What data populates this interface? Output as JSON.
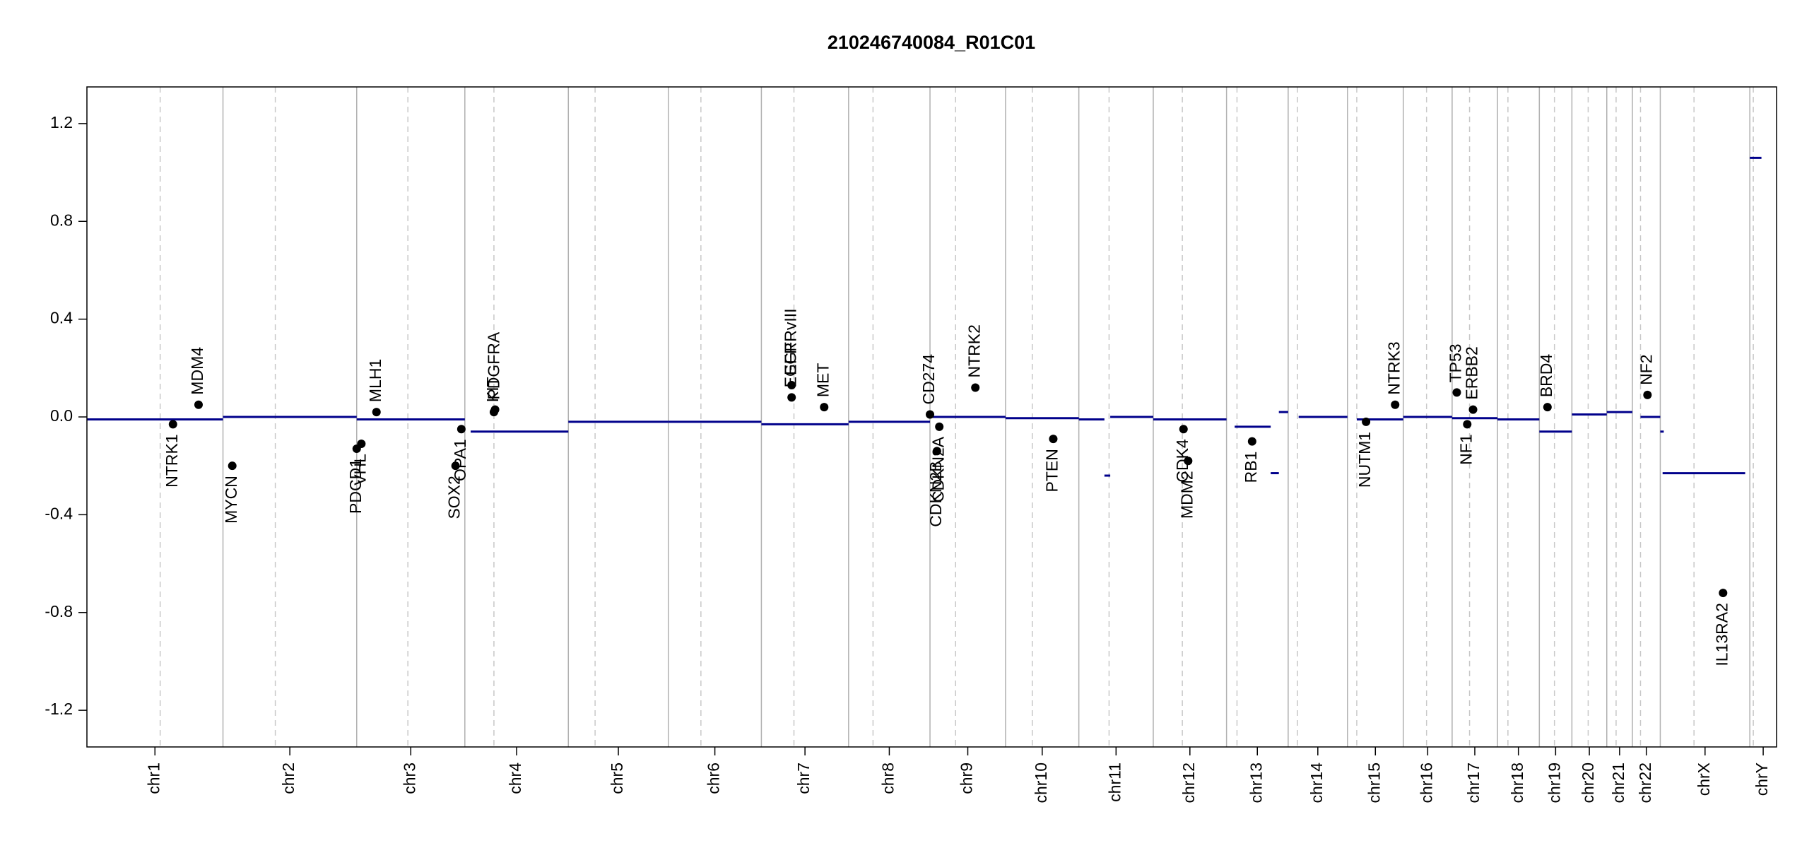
{
  "chart_data": {
    "type": "cnv",
    "title": "210246740084_R01C01",
    "xlim": [
      0,
      1453
    ],
    "ylim": [
      -1.35,
      1.35
    ],
    "yticks": [
      -1.2,
      -0.8,
      -0.4,
      {
        "value": 0,
        "label": "0.0"
      },
      0.4,
      0.8,
      1.2
    ],
    "segment_color": "#00008b",
    "gene_color": "#000000",
    "chromosomes": [
      {
        "name": "chr1",
        "start": 0,
        "end": 117,
        "centromere": 63
      },
      {
        "name": "chr2",
        "start": 117,
        "end": 232,
        "centromere": 162
      },
      {
        "name": "chr3",
        "start": 232,
        "end": 325,
        "centromere": 276
      },
      {
        "name": "chr4",
        "start": 325,
        "end": 414,
        "centromere": 350
      },
      {
        "name": "chr5",
        "start": 414,
        "end": 500,
        "centromere": 437
      },
      {
        "name": "chr6",
        "start": 500,
        "end": 580,
        "centromere": 528
      },
      {
        "name": "chr7",
        "start": 580,
        "end": 655,
        "centromere": 608
      },
      {
        "name": "chr8",
        "start": 655,
        "end": 725,
        "centromere": 676
      },
      {
        "name": "chr9",
        "start": 725,
        "end": 790,
        "centromere": 747
      },
      {
        "name": "chr10",
        "start": 790,
        "end": 853,
        "centromere": 813
      },
      {
        "name": "chr11",
        "start": 853,
        "end": 917,
        "centromere": 879
      },
      {
        "name": "chr12",
        "start": 917,
        "end": 980,
        "centromere": 942
      },
      {
        "name": "chr13",
        "start": 980,
        "end": 1033,
        "centromere": 989
      },
      {
        "name": "chr14",
        "start": 1033,
        "end": 1084,
        "centromere": 1041
      },
      {
        "name": "chr15",
        "start": 1084,
        "end": 1132,
        "centromere": 1092
      },
      {
        "name": "chr16",
        "start": 1132,
        "end": 1174,
        "centromere": 1152
      },
      {
        "name": "chr17",
        "start": 1174,
        "end": 1213,
        "centromere": 1189
      },
      {
        "name": "chr18",
        "start": 1213,
        "end": 1249,
        "centromere": 1222
      },
      {
        "name": "chr19",
        "start": 1249,
        "end": 1277,
        "centromere": 1262
      },
      {
        "name": "chr20",
        "start": 1277,
        "end": 1307,
        "centromere": 1291
      },
      {
        "name": "chr21",
        "start": 1307,
        "end": 1329,
        "centromere": 1315
      },
      {
        "name": "chr22",
        "start": 1329,
        "end": 1353,
        "centromere": 1336
      },
      {
        "name": "chrX",
        "start": 1353,
        "end": 1430,
        "centromere": 1382
      },
      {
        "name": "chrY",
        "start": 1430,
        "end": 1453,
        "centromere": 1433
      }
    ],
    "segments": [
      {
        "start": 0,
        "end": 117,
        "value": -0.01
      },
      {
        "start": 117,
        "end": 232,
        "value": 0.0
      },
      {
        "start": 232,
        "end": 325,
        "value": -0.01
      },
      {
        "start": 330,
        "end": 414,
        "value": -0.06
      },
      {
        "start": 414,
        "end": 500,
        "value": -0.02
      },
      {
        "start": 500,
        "end": 580,
        "value": -0.02
      },
      {
        "start": 580,
        "end": 655,
        "value": -0.03
      },
      {
        "start": 655,
        "end": 725,
        "value": -0.02
      },
      {
        "start": 725,
        "end": 790,
        "value": 0.0
      },
      {
        "start": 790,
        "end": 853,
        "value": -0.005
      },
      {
        "start": 853,
        "end": 875,
        "value": -0.01
      },
      {
        "start": 875,
        "end": 880,
        "value": -0.24
      },
      {
        "start": 880,
        "end": 917,
        "value": 0.0
      },
      {
        "start": 917,
        "end": 980,
        "value": -0.01
      },
      {
        "start": 987,
        "end": 1018,
        "value": -0.04
      },
      {
        "start": 1018,
        "end": 1025,
        "value": -0.23
      },
      {
        "start": 1025,
        "end": 1033,
        "value": 0.02
      },
      {
        "start": 1042,
        "end": 1084,
        "value": 0.0
      },
      {
        "start": 1092,
        "end": 1132,
        "value": -0.01
      },
      {
        "start": 1132,
        "end": 1174,
        "value": 0.0
      },
      {
        "start": 1174,
        "end": 1213,
        "value": -0.005
      },
      {
        "start": 1213,
        "end": 1249,
        "value": -0.01
      },
      {
        "start": 1249,
        "end": 1277,
        "value": -0.06
      },
      {
        "start": 1277,
        "end": 1307,
        "value": 0.01
      },
      {
        "start": 1307,
        "end": 1329,
        "value": 0.02
      },
      {
        "start": 1336,
        "end": 1353,
        "value": 0.0
      },
      {
        "start": 1353,
        "end": 1356,
        "value": -0.06
      },
      {
        "start": 1355,
        "end": 1426,
        "value": -0.23
      },
      {
        "start": 1430,
        "end": 1440,
        "value": 1.06
      }
    ],
    "genes": [
      {
        "name": "NTRK1",
        "x": 74,
        "value": -0.03
      },
      {
        "name": "MDM4",
        "x": 96,
        "value": 0.05
      },
      {
        "name": "MYCN",
        "x": 125,
        "value": -0.2
      },
      {
        "name": "PDCD1",
        "x": 232,
        "value": -0.13
      },
      {
        "name": "VHL",
        "x": 236,
        "value": -0.11
      },
      {
        "name": "MLH1",
        "x": 249,
        "value": 0.02
      },
      {
        "name": "SOX2",
        "x": 317,
        "value": -0.2
      },
      {
        "name": "OPA1",
        "x": 322,
        "value": -0.05
      },
      {
        "name": "KIT",
        "x": 350,
        "value": 0.02
      },
      {
        "name": "PDGFRA",
        "x": 351,
        "value": 0.03
      },
      {
        "name": "EGFR",
        "x": 606,
        "value": 0.08
      },
      {
        "name": "EGFRvIII",
        "x": 606,
        "value": 0.13
      },
      {
        "name": "MET",
        "x": 634,
        "value": 0.04
      },
      {
        "name": "CD274",
        "x": 725,
        "value": 0.01
      },
      {
        "name": "CDKN2A",
        "x": 733,
        "value": -0.04
      },
      {
        "name": "CDKN2B",
        "x": 731,
        "value": -0.14
      },
      {
        "name": "NTRK2",
        "x": 764,
        "value": 0.12
      },
      {
        "name": "PTEN",
        "x": 831,
        "value": -0.09
      },
      {
        "name": "CDK4",
        "x": 943,
        "value": -0.05
      },
      {
        "name": "MDM2",
        "x": 947,
        "value": -0.18
      },
      {
        "name": "RB1",
        "x": 1002,
        "value": -0.1
      },
      {
        "name": "NUTM1",
        "x": 1100,
        "value": -0.02
      },
      {
        "name": "NTRK3",
        "x": 1125,
        "value": 0.05
      },
      {
        "name": "TP53",
        "x": 1178,
        "value": 0.1
      },
      {
        "name": "ERBB2",
        "x": 1192,
        "value": 0.03
      },
      {
        "name": "NF1",
        "x": 1187,
        "value": -0.03
      },
      {
        "name": "BRD4",
        "x": 1256,
        "value": 0.04
      },
      {
        "name": "NF2",
        "x": 1342,
        "value": 0.09
      },
      {
        "name": "IL13RA2",
        "x": 1407,
        "value": -0.72
      }
    ]
  }
}
